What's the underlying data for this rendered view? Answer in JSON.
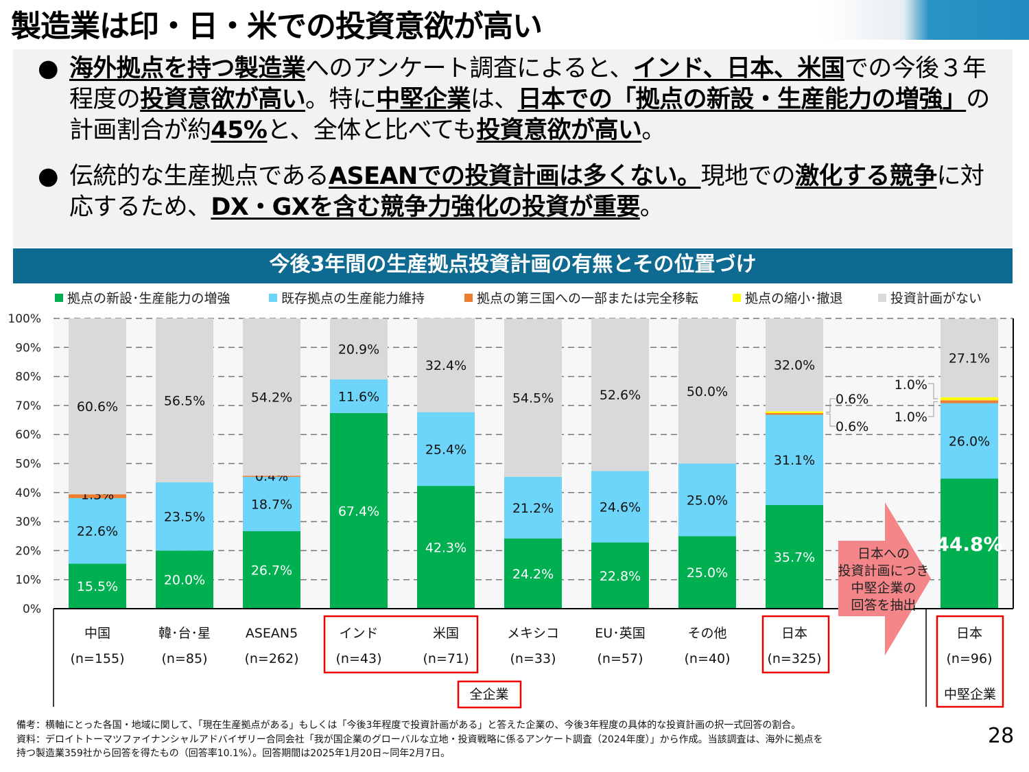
{
  "title": "製造業は印・日・米での投資意欲が高い",
  "bullets": [
    [
      {
        "t": "海外拠点を持つ製造業",
        "b": true
      },
      {
        "t": "へのアンケート調査によると、"
      },
      {
        "t": "インド、日本、米国",
        "b": true
      },
      {
        "t": "での今後３年程度の"
      },
      {
        "t": "投資意欲が高い",
        "b": true
      },
      {
        "t": "。特に"
      },
      {
        "t": "中堅企業",
        "b": true
      },
      {
        "t": "は、"
      },
      {
        "t": "日本での「拠点の新設・生産能力の増強」",
        "b": true
      },
      {
        "t": "の計画割合が約"
      },
      {
        "t": "45%",
        "b": true
      },
      {
        "t": "と、全体と比べても"
      },
      {
        "t": "投資意欲が高い",
        "b": true
      },
      {
        "t": "。"
      }
    ],
    [
      {
        "t": "伝統的な生産拠点である"
      },
      {
        "t": "ASEANでの投資計画は多くない。",
        "b": true
      },
      {
        "t": "現地での"
      },
      {
        "t": "激化する競争",
        "b": true
      },
      {
        "t": "に対応するため、"
      },
      {
        "t": "DX・GXを含む競争力強化の投資が重要",
        "b": true
      },
      {
        "t": "。"
      }
    ]
  ],
  "bullet_symbol": "●",
  "chart_title": "今後3年間の生産拠点投資計画の有無とその位置づけ",
  "chart_data": {
    "type": "bar",
    "stacked": true,
    "title": "今後3年間の生産拠点投資計画の有無とその位置づけ",
    "ylim": [
      0,
      100
    ],
    "yticks": [
      "0%",
      "10%",
      "20%",
      "30%",
      "40%",
      "50%",
      "60%",
      "70%",
      "80%",
      "90%",
      "100%"
    ],
    "grid": true,
    "legend_position": "top",
    "series": [
      {
        "name": "拠点の新設･生産能力の増強",
        "color": "#00b050",
        "values": [
          15.5,
          20.0,
          26.7,
          67.4,
          42.3,
          24.2,
          22.8,
          25.0,
          35.7,
          44.8
        ]
      },
      {
        "name": "既存拠点の生産能力維持",
        "color": "#6dd5fa",
        "values": [
          22.6,
          23.5,
          18.7,
          11.6,
          25.4,
          21.2,
          24.6,
          25.0,
          31.1,
          26.0
        ]
      },
      {
        "name": "拠点の第三国への一部または完全移転",
        "color": "#ed7d31",
        "values": [
          1.3,
          0,
          0.4,
          0,
          0,
          0,
          0,
          0,
          0.6,
          1.0
        ]
      },
      {
        "name": "拠点の縮小･撤退",
        "color": "#ffff00",
        "values": [
          0,
          0,
          0,
          0,
          0,
          0,
          0,
          0,
          0.6,
          1.0
        ]
      },
      {
        "name": "投資計画がない",
        "color": "#d9d9d9",
        "values": [
          60.6,
          56.5,
          54.2,
          20.9,
          32.4,
          54.5,
          52.6,
          50.0,
          32.0,
          27.1
        ]
      }
    ],
    "categories": [
      {
        "name": "中国",
        "n": "(n=155)"
      },
      {
        "name": "韓･台･星",
        "n": "(n=85)"
      },
      {
        "name": "ASEAN5",
        "n": "(n=262)"
      },
      {
        "name": "インド",
        "n": "(n=43)"
      },
      {
        "name": "米国",
        "n": "(n=71)"
      },
      {
        "name": "メキシコ",
        "n": "(n=33)"
      },
      {
        "name": "EU･英国",
        "n": "(n=57)"
      },
      {
        "name": "その他",
        "n": "(n=40)"
      },
      {
        "name": "日本",
        "n": "(n=325)"
      },
      {
        "name": "日本",
        "n": "(n=96)"
      }
    ],
    "group_labels": {
      "all": "全企業",
      "mid": "中堅企業"
    },
    "arrow_text": [
      "日本への",
      "投資計画につき",
      "中堅企業の",
      "回答を抽出"
    ]
  },
  "notes": [
    "備考：横軸にとった各国・地域に関して、「現在生産拠点がある」もしくは「今後3年程度で投資計画がある」と答えた企業の、今後3年程度の具体的な投資計画の択一式回答の割合。",
    "資料：デロイトトーマツファイナンシャルアドバイザリー合同会社「我が国企業のグローバルな立地・投資戦略に係るアンケート調査（2024年度）」から作成。当該調査は、海外に拠点を",
    "持つ製造業359社から回答を得たもの（回答率10.1%）。回答期間は2025年1月20日~同年2月7日。"
  ],
  "page_number": "28"
}
